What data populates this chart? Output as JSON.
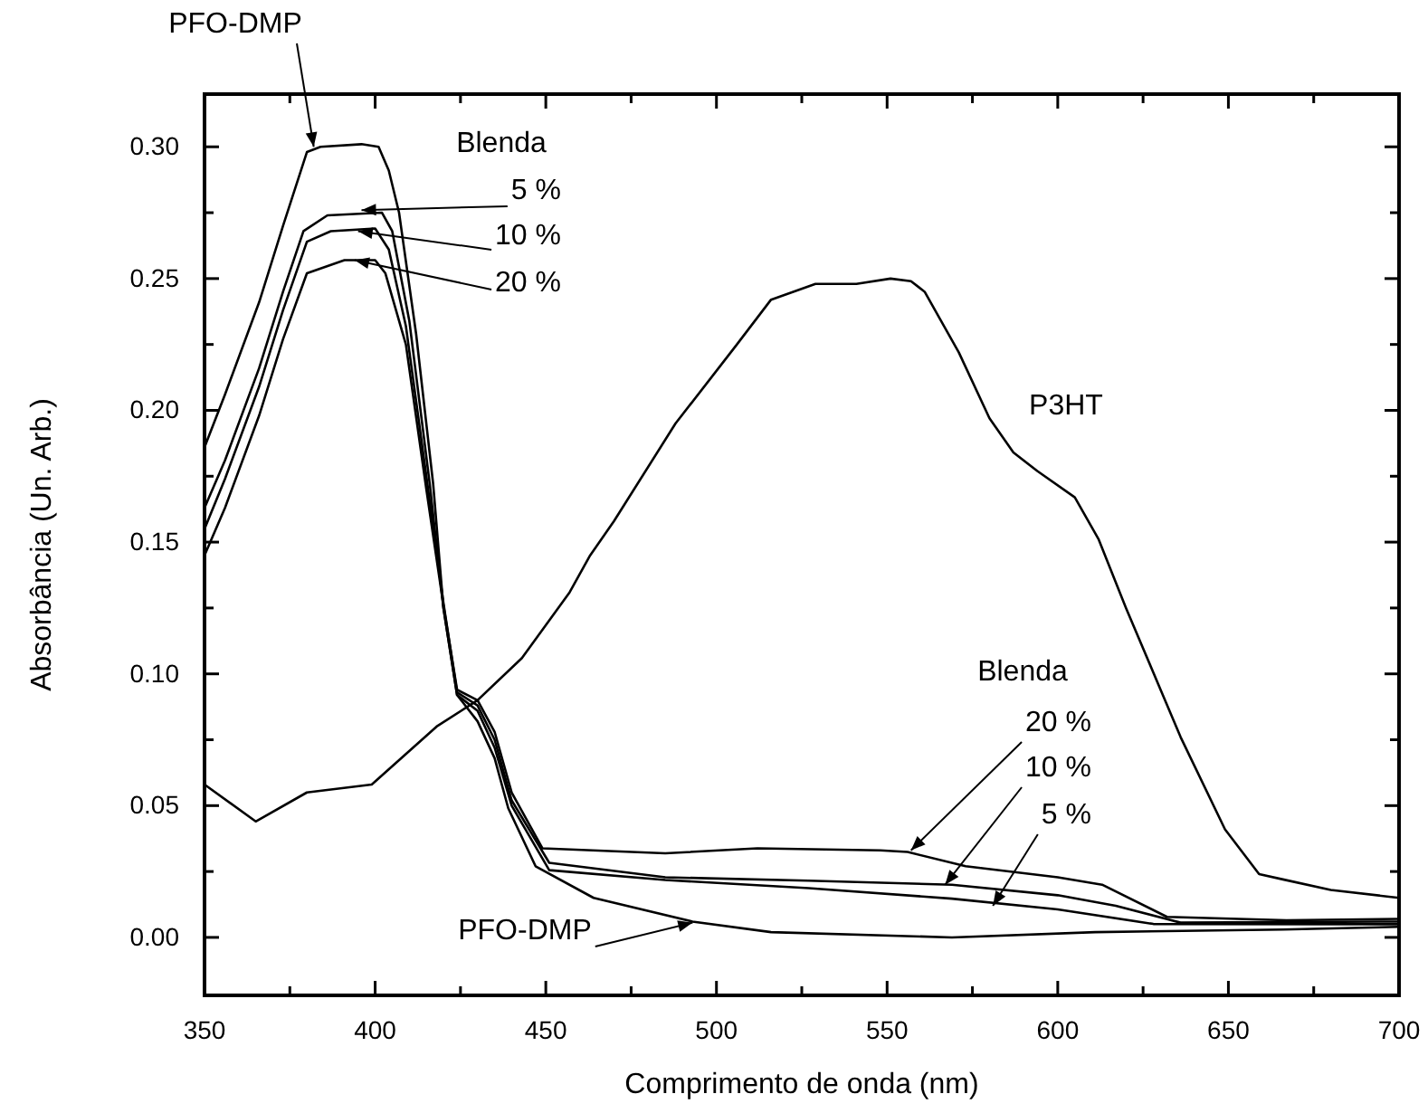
{
  "chart_data": {
    "type": "line",
    "xlabel": "Comprimento de onda (nm)",
    "ylabel": "Absorbância (Un. Arb.)",
    "xlim": [
      350,
      700
    ],
    "ylim": [
      -0.022,
      0.32
    ],
    "xticks": [
      350,
      {
        "value": 375,
        "label": null
      },
      400,
      {
        "value": 425,
        "label": null
      },
      450,
      {
        "value": 475,
        "label": null
      },
      500,
      {
        "value": 525,
        "label": null
      },
      550,
      {
        "value": 575,
        "label": null
      },
      600,
      {
        "value": 625,
        "label": null
      },
      650,
      {
        "value": 675,
        "label": null
      },
      700
    ],
    "yticks": [
      {
        "value": 0,
        "label": "0.00"
      },
      {
        "value": 0.025,
        "label": null
      },
      {
        "value": 0.05,
        "label": "0.05"
      },
      {
        "value": 0.075,
        "label": null
      },
      {
        "value": 0.1,
        "label": "0.10"
      },
      {
        "value": 0.125,
        "label": null
      },
      {
        "value": 0.15,
        "label": "0.15"
      },
      {
        "value": 0.175,
        "label": null
      },
      {
        "value": 0.2,
        "label": "0.20"
      },
      {
        "value": 0.225,
        "label": null
      },
      {
        "value": 0.25,
        "label": "0.25"
      },
      {
        "value": 0.275,
        "label": null
      },
      {
        "value": 0.3,
        "label": "0.30"
      }
    ],
    "grid": false,
    "marker": "none",
    "line_style": "solid",
    "series": [
      {
        "color": "#000000",
        "x": [
          350,
          356,
          366,
          373,
          380,
          384,
          396,
          401,
          404,
          407,
          412,
          417,
          420,
          424,
          430,
          435,
          439,
          447,
          464,
          493,
          516,
          569,
          611,
          666,
          700
        ],
        "values": [
          0.186,
          0.206,
          0.241,
          0.27,
          0.298,
          0.3,
          0.301,
          0.3,
          0.291,
          0.275,
          0.229,
          0.172,
          0.125,
          0.092,
          0.082,
          0.068,
          0.049,
          0.027,
          0.015,
          0.006,
          0.002,
          0.0,
          0.002,
          0.003,
          0.004
        ]
      },
      {
        "color": "#000000",
        "x": [
          350,
          356,
          366,
          373,
          379,
          386,
          402,
          405,
          410,
          416,
          420,
          424,
          430,
          435,
          440,
          451,
          485,
          527,
          569,
          600,
          628,
          700
        ],
        "values": [
          0.163,
          0.181,
          0.216,
          0.245,
          0.268,
          0.274,
          0.275,
          0.268,
          0.234,
          0.172,
          0.125,
          0.092,
          0.086,
          0.072,
          0.05,
          0.0255,
          0.0218,
          0.0187,
          0.0147,
          0.0106,
          0.0051,
          0.005
        ]
      },
      {
        "color": "#000000",
        "x": [
          350,
          356,
          366,
          373,
          380,
          387,
          400,
          404,
          409,
          415,
          420,
          424,
          430,
          435,
          440,
          451,
          485,
          527,
          569,
          600,
          617,
          636,
          700
        ],
        "values": [
          0.155,
          0.174,
          0.209,
          0.238,
          0.264,
          0.268,
          0.269,
          0.261,
          0.232,
          0.175,
          0.127,
          0.093,
          0.088,
          0.075,
          0.052,
          0.0283,
          0.0228,
          0.0215,
          0.02,
          0.016,
          0.012,
          0.0056,
          0.006
        ]
      },
      {
        "color": "#000000",
        "x": [
          350,
          356,
          366,
          373,
          380,
          391,
          400,
          403,
          409,
          415,
          420,
          424,
          430,
          435,
          440,
          449,
          485,
          512,
          548,
          556,
          573,
          600,
          613,
          632,
          667,
          700
        ],
        "values": [
          0.145,
          0.163,
          0.198,
          0.227,
          0.252,
          0.257,
          0.257,
          0.252,
          0.225,
          0.17,
          0.126,
          0.094,
          0.09,
          0.078,
          0.055,
          0.0338,
          0.0319,
          0.0338,
          0.033,
          0.0324,
          0.027,
          0.0228,
          0.02,
          0.0078,
          0.0065,
          0.007
        ]
      },
      {
        "color": "#000000",
        "x": [
          350,
          365,
          380,
          399,
          418,
          430,
          443,
          457,
          463,
          470,
          488,
          506,
          516,
          529,
          541,
          551,
          557,
          561,
          571,
          580,
          587,
          594,
          605,
          612,
          620,
          636,
          649,
          659,
          666,
          680,
          700
        ],
        "values": [
          0.058,
          0.044,
          0.055,
          0.058,
          0.08,
          0.09,
          0.106,
          0.131,
          0.145,
          0.158,
          0.195,
          0.225,
          0.242,
          0.248,
          0.248,
          0.25,
          0.249,
          0.245,
          0.222,
          0.197,
          0.184,
          0.177,
          0.167,
          0.151,
          0.125,
          0.076,
          0.041,
          0.024,
          0.022,
          0.018,
          0.015
        ]
      }
    ],
    "annotations": [
      {
        "text": "PFO-DMP",
        "x": 382,
        "y": 0.3
      },
      "Blenda",
      {
        "text": "5 %",
        "x": 396,
        "y": 0.276
      },
      {
        "text": "10 %",
        "x": 395,
        "y": 0.268
      },
      {
        "text": "20 %",
        "x": 394,
        "y": 0.257
      },
      "P3HT",
      "Blenda",
      {
        "text": "20 %",
        "x": 557,
        "y": 0.033
      },
      {
        "text": "10 %",
        "x": 567,
        "y": 0.02
      },
      {
        "text": "5 %",
        "x": 581,
        "y": 0.012
      },
      {
        "text": "PFO-DMP",
        "x": 493,
        "y": 0.0056
      }
    ]
  }
}
